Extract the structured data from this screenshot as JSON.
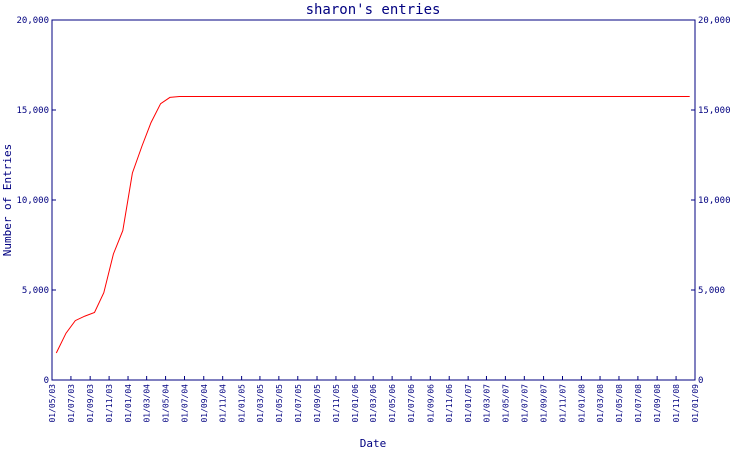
{
  "chart_data": {
    "type": "line",
    "title": "sharon's entries",
    "xlabel": "Date",
    "ylabel": "Number of Entries",
    "ylim": [
      0,
      20000
    ],
    "y_ticks": [
      {
        "value": 0,
        "label": "0"
      },
      {
        "value": 5000,
        "label": "5,000"
      },
      {
        "value": 10000,
        "label": "10,000"
      },
      {
        "value": 15000,
        "label": "15,000"
      },
      {
        "value": 20000,
        "label": "20,000"
      }
    ],
    "x_start": "2003-05-01",
    "x_end": "2009-01-01",
    "x_ticks": [
      {
        "date": "2003-05-01",
        "label": "01/05/03"
      },
      {
        "date": "2003-07-01",
        "label": "01/07/03"
      },
      {
        "date": "2003-09-01",
        "label": "01/09/03"
      },
      {
        "date": "2003-11-01",
        "label": "01/11/03"
      },
      {
        "date": "2004-01-01",
        "label": "01/01/04"
      },
      {
        "date": "2004-03-01",
        "label": "01/03/04"
      },
      {
        "date": "2004-05-01",
        "label": "01/05/04"
      },
      {
        "date": "2004-07-01",
        "label": "01/07/04"
      },
      {
        "date": "2004-09-01",
        "label": "01/09/04"
      },
      {
        "date": "2004-11-01",
        "label": "01/11/04"
      },
      {
        "date": "2005-01-01",
        "label": "01/01/05"
      },
      {
        "date": "2005-03-01",
        "label": "01/03/05"
      },
      {
        "date": "2005-05-01",
        "label": "01/05/05"
      },
      {
        "date": "2005-07-01",
        "label": "01/07/05"
      },
      {
        "date": "2005-09-01",
        "label": "01/09/05"
      },
      {
        "date": "2005-11-01",
        "label": "01/11/05"
      },
      {
        "date": "2006-01-01",
        "label": "01/01/06"
      },
      {
        "date": "2006-03-01",
        "label": "01/03/06"
      },
      {
        "date": "2006-05-01",
        "label": "01/05/06"
      },
      {
        "date": "2006-07-01",
        "label": "01/07/06"
      },
      {
        "date": "2006-09-01",
        "label": "01/09/06"
      },
      {
        "date": "2006-11-01",
        "label": "01/11/06"
      },
      {
        "date": "2007-01-01",
        "label": "01/01/07"
      },
      {
        "date": "2007-03-01",
        "label": "01/03/07"
      },
      {
        "date": "2007-05-01",
        "label": "01/05/07"
      },
      {
        "date": "2007-07-01",
        "label": "01/07/07"
      },
      {
        "date": "2007-09-01",
        "label": "01/09/07"
      },
      {
        "date": "2007-11-01",
        "label": "01/11/07"
      },
      {
        "date": "2008-01-01",
        "label": "01/01/08"
      },
      {
        "date": "2008-03-01",
        "label": "01/03/08"
      },
      {
        "date": "2008-05-01",
        "label": "01/05/08"
      },
      {
        "date": "2008-07-01",
        "label": "01/07/08"
      },
      {
        "date": "2008-09-01",
        "label": "01/09/08"
      },
      {
        "date": "2008-11-01",
        "label": "01/11/08"
      },
      {
        "date": "2009-01-01",
        "label": "01/01/09"
      }
    ],
    "grid": false,
    "series": [
      {
        "color": "#ff0000",
        "points": [
          {
            "x": "2003-05-15",
            "y": 1500
          },
          {
            "x": "2003-06-15",
            "y": 2600
          },
          {
            "x": "2003-07-15",
            "y": 3300
          },
          {
            "x": "2003-08-15",
            "y": 3550
          },
          {
            "x": "2003-09-15",
            "y": 3750
          },
          {
            "x": "2003-10-15",
            "y": 4850
          },
          {
            "x": "2003-11-15",
            "y": 7000
          },
          {
            "x": "2003-12-15",
            "y": 8300
          },
          {
            "x": "2004-01-15",
            "y": 11500
          },
          {
            "x": "2004-02-15",
            "y": 13000
          },
          {
            "x": "2004-03-15",
            "y": 14300
          },
          {
            "x": "2004-04-15",
            "y": 15350
          },
          {
            "x": "2004-05-15",
            "y": 15700
          },
          {
            "x": "2004-06-15",
            "y": 15750
          },
          {
            "x": "2008-12-15",
            "y": 15750
          }
        ]
      }
    ]
  }
}
